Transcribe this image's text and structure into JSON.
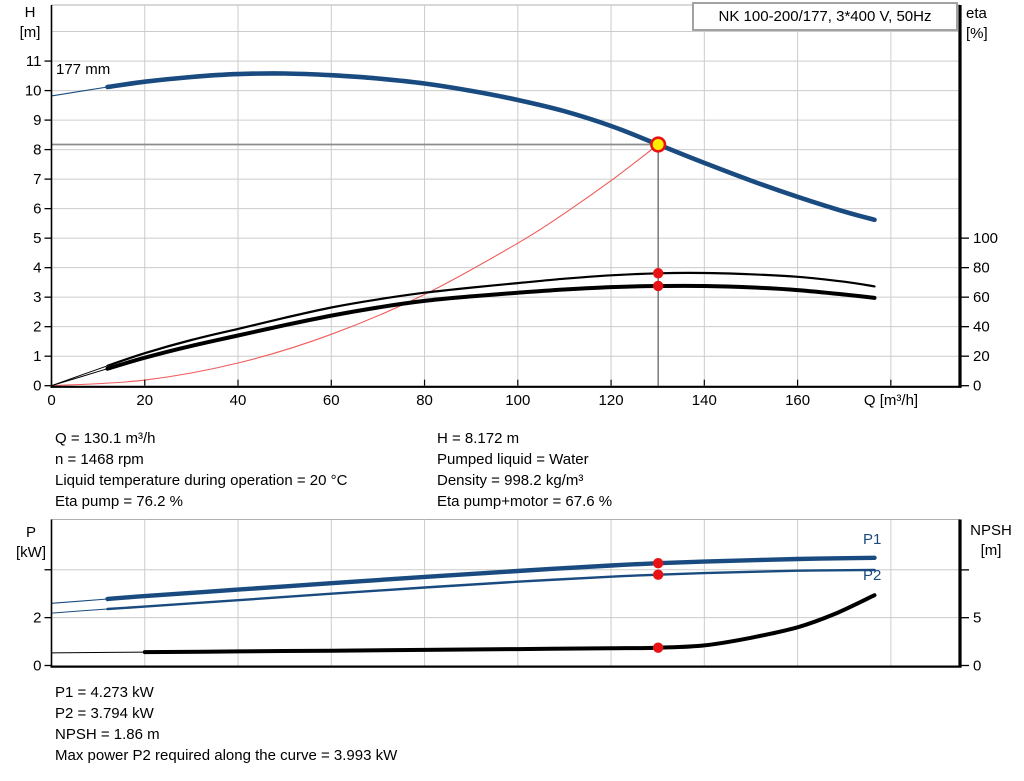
{
  "title_box": "NK 100-200/177, 3*400 V, 50Hz",
  "labels": {
    "h_axis": "H\n[m]",
    "eta_axis": "eta\n[%]",
    "q_axis": "Q [m³/h]",
    "p_axis": "P\n[kW]",
    "npsh_axis": "NPSH\n[m]",
    "impeller": "177 mm",
    "p1": "P1",
    "p2": "P2"
  },
  "info_top_left": [
    "Q = 130.1 m³/h",
    "n = 1468 rpm",
    "Liquid temperature during operation = 20 °C",
    "Eta pump = 76.2 %"
  ],
  "info_top_right": [
    "H = 8.172 m",
    "Pumped liquid = Water",
    "Density = 998.2 kg/m³",
    "Eta pump+motor = 67.6 %"
  ],
  "info_bottom": [
    "P1 = 4.273 kW",
    "P2 = 3.794 kW",
    "NPSH = 1.86 m",
    "Max power P2 required along the curve = 3.993 kW"
  ],
  "colors": {
    "blue": "#1a4b80",
    "black": "#000000",
    "red_dot": "#e81113",
    "red_curve": "#f15b5b",
    "yellow": "#ffec00",
    "grid": "#cccccc",
    "border": "#b0b0b0",
    "op_h_line": "#8c8c8c",
    "op_v_line": "#595959",
    "axis": "#000000"
  },
  "chart_data": [
    {
      "type": "line",
      "name": "qh-eta-chart",
      "title": "NK 100-200/177, 3*400 V, 50Hz",
      "x": {
        "label": "Q [m³/h]",
        "min": 0,
        "max": 195,
        "grid_step": 20,
        "grid_max": 180,
        "tick_labels": [
          0,
          20,
          40,
          60,
          80,
          100,
          120,
          140,
          160
        ],
        "ticks": true
      },
      "y_left": {
        "label": "H [m]",
        "min": 0,
        "max": 12.9,
        "ticks": [
          0,
          1,
          2,
          3,
          4,
          5,
          6,
          7,
          8,
          9,
          10,
          11
        ],
        "ticks_unlabeled": [],
        "grid": [
          1,
          2,
          3,
          4,
          5,
          6,
          7,
          8,
          9,
          10,
          11,
          12
        ]
      },
      "y_right": {
        "label": "eta [%]",
        "min": 0,
        "max": 258,
        "ticks": [
          0,
          20,
          40,
          60,
          80,
          100
        ],
        "ticks_unlabeled": []
      },
      "series": [
        {
          "name": "system-curve",
          "axis": "left",
          "color": "#f15b5b",
          "thin": 1.1,
          "thick": 0,
          "thick_from": 0,
          "points": [
            [
              0,
              0
            ],
            [
              20,
              0.19
            ],
            [
              40,
              0.77
            ],
            [
              60,
              1.74
            ],
            [
              80,
              3.09
            ],
            [
              100,
              4.83
            ],
            [
              110,
              5.84
            ],
            [
              120,
              6.95
            ],
            [
              130.1,
              8.172
            ]
          ]
        },
        {
          "name": "eta-pump-curve",
          "axis": "right",
          "color": "#000000",
          "thin": 1,
          "thick": 2.2,
          "thick_from": 12,
          "points": [
            [
              0,
              0
            ],
            [
              12,
              13.5
            ],
            [
              20,
              22
            ],
            [
              30,
              31
            ],
            [
              40,
              38.5
            ],
            [
              50,
              46
            ],
            [
              60,
              53
            ],
            [
              70,
              58.5
            ],
            [
              80,
              63
            ],
            [
              90,
              66.5
            ],
            [
              100,
              69.5
            ],
            [
              110,
              72.5
            ],
            [
              120,
              74.8
            ],
            [
              130.1,
              76.2
            ],
            [
              140,
              76.4
            ],
            [
              150,
              75.5
            ],
            [
              160,
              73.8
            ],
            [
              170,
              70.5
            ],
            [
              176.5,
              67.3
            ]
          ]
        },
        {
          "name": "eta-pump-motor-curve",
          "axis": "right",
          "color": "#000000",
          "thin": 1,
          "thick": 4,
          "thick_from": 12,
          "points": [
            [
              0,
              0
            ],
            [
              12,
              11.5
            ],
            [
              20,
              19
            ],
            [
              30,
              27
            ],
            [
              40,
              34
            ],
            [
              50,
              41
            ],
            [
              60,
              47.5
            ],
            [
              70,
              53
            ],
            [
              80,
              57.5
            ],
            [
              90,
              60.5
            ],
            [
              100,
              63
            ],
            [
              110,
              65.2
            ],
            [
              120,
              66.8
            ],
            [
              130.1,
              67.6
            ],
            [
              140,
              67.6
            ],
            [
              150,
              66.6
            ],
            [
              160,
              64.8
            ],
            [
              170,
              61.8
            ],
            [
              176.5,
              59.5
            ]
          ]
        },
        {
          "name": "head-curve-177mm",
          "axis": "left",
          "color": "#1a4b80",
          "thin": 1.1,
          "thick": 4.6,
          "thick_from": 12,
          "points": [
            [
              0,
              9.82
            ],
            [
              12,
              10.12
            ],
            [
              20,
              10.3
            ],
            [
              30,
              10.46
            ],
            [
              40,
              10.56
            ],
            [
              50,
              10.58
            ],
            [
              60,
              10.52
            ],
            [
              70,
              10.41
            ],
            [
              80,
              10.24
            ],
            [
              90,
              9.99
            ],
            [
              100,
              9.68
            ],
            [
              110,
              9.3
            ],
            [
              120,
              8.8
            ],
            [
              130.1,
              8.172
            ],
            [
              140,
              7.55
            ],
            [
              150,
              6.95
            ],
            [
              160,
              6.4
            ],
            [
              170,
              5.9
            ],
            [
              176.5,
              5.62
            ]
          ]
        }
      ],
      "operating_point": {
        "q": 130.1,
        "h": 8.172
      },
      "markers": [
        {
          "axis": "right",
          "q": 130.1,
          "value": 76.2
        },
        {
          "axis": "right",
          "q": 130.1,
          "value": 67.6
        }
      ]
    },
    {
      "type": "line",
      "name": "power-npsh-chart",
      "x": {
        "label": "",
        "min": 0,
        "max": 195,
        "grid_step": 20,
        "grid_max": 180,
        "tick_labels": [],
        "ticks": false
      },
      "y_left": {
        "label": "P [kW]",
        "min": 0,
        "max": 6.1,
        "ticks": [
          0,
          2
        ],
        "ticks_unlabeled": [
          4
        ],
        "grid": [
          2,
          4
        ]
      },
      "y_right": {
        "label": "NPSH [m]",
        "min": 0,
        "max": 15.27,
        "ticks": [
          0,
          5
        ],
        "ticks_unlabeled": [
          10
        ]
      },
      "series": [
        {
          "name": "p1-curve",
          "axis": "left",
          "color": "#1a4b80",
          "thin": 1.1,
          "thick": 4.4,
          "thick_from": 12,
          "points": [
            [
              0,
              2.6
            ],
            [
              12,
              2.78
            ],
            [
              20,
              2.9
            ],
            [
              40,
              3.17
            ],
            [
              60,
              3.44
            ],
            [
              80,
              3.7
            ],
            [
              100,
              3.95
            ],
            [
              120,
              4.18
            ],
            [
              130.1,
              4.273
            ],
            [
              140,
              4.34
            ],
            [
              160,
              4.45
            ],
            [
              176.5,
              4.5
            ]
          ]
        },
        {
          "name": "p2-curve",
          "axis": "left",
          "color": "#1a4b80",
          "thin": 1,
          "thick": 2.4,
          "thick_from": 12,
          "points": [
            [
              0,
              2.19
            ],
            [
              12,
              2.36
            ],
            [
              20,
              2.46
            ],
            [
              40,
              2.73
            ],
            [
              60,
              3.0
            ],
            [
              80,
              3.26
            ],
            [
              100,
              3.5
            ],
            [
              120,
              3.71
            ],
            [
              130.1,
              3.794
            ],
            [
              140,
              3.86
            ],
            [
              160,
              3.96
            ],
            [
              176.5,
              3.993
            ]
          ]
        },
        {
          "name": "npsh-curve",
          "axis": "right",
          "color": "#000000",
          "thin": 1,
          "thick": 4,
          "thick_from": 12,
          "points": [
            [
              0,
              1.32
            ],
            [
              20,
              1.4
            ],
            [
              40,
              1.47
            ],
            [
              60,
              1.55
            ],
            [
              80,
              1.63
            ],
            [
              100,
              1.72
            ],
            [
              120,
              1.8
            ],
            [
              130.1,
              1.86
            ],
            [
              140,
              2.1
            ],
            [
              150,
              2.9
            ],
            [
              160,
              4.0
            ],
            [
              168,
              5.4
            ],
            [
              176.5,
              7.35
            ]
          ]
        }
      ],
      "markers": [
        {
          "axis": "left",
          "q": 130.1,
          "value": 4.273
        },
        {
          "axis": "left",
          "q": 130.1,
          "value": 3.794
        },
        {
          "axis": "right",
          "q": 130.1,
          "value": 1.86
        }
      ]
    }
  ]
}
